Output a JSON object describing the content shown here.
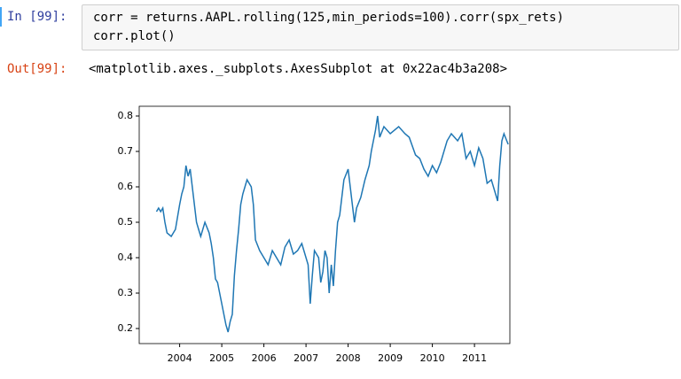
{
  "input_cell": {
    "prompt": "In  [99]:",
    "code": [
      "corr = returns.AAPL.rolling(125,min_periods=100).corr(spx_rets)",
      "corr.plot()"
    ]
  },
  "output_cell": {
    "prompt": "Out[99]:",
    "text": "<matplotlib.axes._subplots.AxesSubplot at 0x22ac4b3a208>"
  },
  "chart_data": {
    "type": "line",
    "x": [
      2003.45,
      2003.5,
      2003.55,
      2003.6,
      2003.65,
      2003.7,
      2003.8,
      2003.9,
      2004.0,
      2004.05,
      2004.1,
      2004.15,
      2004.2,
      2004.25,
      2004.3,
      2004.35,
      2004.4,
      2004.45,
      2004.5,
      2004.6,
      2004.7,
      2004.75,
      2004.8,
      2004.85,
      2004.9,
      2004.95,
      2005.0,
      2005.05,
      2005.1,
      2005.15,
      2005.2,
      2005.25,
      2005.3,
      2005.35,
      2005.4,
      2005.45,
      2005.5,
      2005.55,
      2005.6,
      2005.7,
      2005.75,
      2005.8,
      2005.9,
      2006.0,
      2006.1,
      2006.2,
      2006.3,
      2006.4,
      2006.5,
      2006.6,
      2006.7,
      2006.8,
      2006.9,
      2007.0,
      2007.05,
      2007.1,
      2007.15,
      2007.2,
      2007.3,
      2007.35,
      2007.4,
      2007.45,
      2007.5,
      2007.55,
      2007.6,
      2007.65,
      2007.7,
      2007.75,
      2007.8,
      2007.85,
      2007.9,
      2008.0,
      2008.05,
      2008.1,
      2008.15,
      2008.2,
      2008.3,
      2008.4,
      2008.5,
      2008.55,
      2008.65,
      2008.7,
      2008.75,
      2008.85,
      2009.0,
      2009.2,
      2009.35,
      2009.45,
      2009.6,
      2009.7,
      2009.8,
      2009.9,
      2010.0,
      2010.1,
      2010.2,
      2010.35,
      2010.45,
      2010.6,
      2010.7,
      2010.8,
      2010.9,
      2011.0,
      2011.1,
      2011.2,
      2011.3,
      2011.4,
      2011.5,
      2011.55,
      2011.6,
      2011.65,
      2011.7,
      2011.8
    ],
    "series": [
      {
        "color": "#1f77b4",
        "values": [
          0.53,
          0.54,
          0.53,
          0.54,
          0.5,
          0.47,
          0.46,
          0.48,
          0.55,
          0.58,
          0.6,
          0.66,
          0.63,
          0.65,
          0.6,
          0.55,
          0.5,
          0.48,
          0.46,
          0.5,
          0.47,
          0.44,
          0.4,
          0.34,
          0.33,
          0.3,
          0.27,
          0.24,
          0.21,
          0.19,
          0.22,
          0.24,
          0.35,
          0.42,
          0.48,
          0.55,
          0.58,
          0.6,
          0.62,
          0.6,
          0.55,
          0.45,
          0.42,
          0.4,
          0.38,
          0.42,
          0.4,
          0.38,
          0.43,
          0.45,
          0.41,
          0.42,
          0.44,
          0.4,
          0.38,
          0.27,
          0.35,
          0.42,
          0.4,
          0.33,
          0.36,
          0.42,
          0.4,
          0.3,
          0.38,
          0.32,
          0.42,
          0.5,
          0.52,
          0.57,
          0.62,
          0.65,
          0.6,
          0.55,
          0.5,
          0.54,
          0.57,
          0.62,
          0.66,
          0.7,
          0.76,
          0.8,
          0.74,
          0.77,
          0.75,
          0.77,
          0.75,
          0.74,
          0.69,
          0.68,
          0.65,
          0.63,
          0.66,
          0.64,
          0.67,
          0.73,
          0.75,
          0.73,
          0.75,
          0.68,
          0.7,
          0.66,
          0.71,
          0.68,
          0.61,
          0.62,
          0.58,
          0.56,
          0.66,
          0.73,
          0.75,
          0.72
        ]
      }
    ],
    "xlim": [
      2003.04,
      2011.84
    ],
    "xticks": [
      2004,
      2005,
      2006,
      2007,
      2008,
      2009,
      2010,
      2011
    ],
    "ylim": [
      0.1575,
      0.8275
    ],
    "yticks": [
      0.2,
      0.3,
      0.4,
      0.5,
      0.6,
      0.7,
      0.8
    ]
  }
}
